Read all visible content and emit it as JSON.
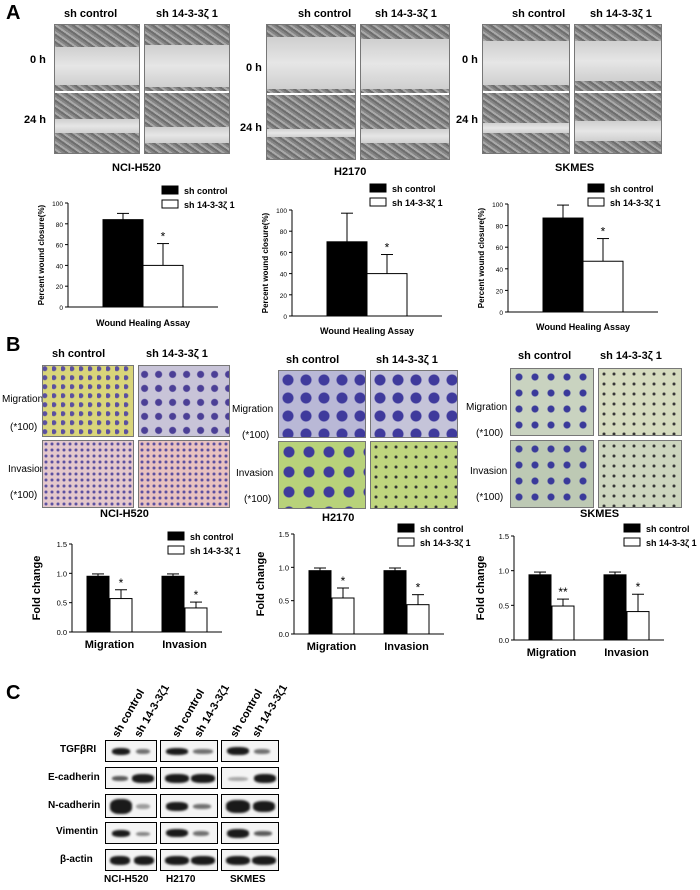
{
  "panels": {
    "a": "A",
    "b": "B",
    "c": "C"
  },
  "section_a": {
    "groups": [
      {
        "cell_line": "NCI-H520",
        "col_labels": [
          "sh control",
          "sh 14-3-3ζ 1"
        ],
        "row_labels": [
          "0 h",
          "24 h"
        ]
      },
      {
        "cell_line": "H2170",
        "col_labels": [
          "sh control",
          "sh 14-3-3ζ 1"
        ],
        "row_labels": [
          "0 h",
          "24 h"
        ]
      },
      {
        "cell_line": "SKMES",
        "col_labels": [
          "sh control",
          "sh 14-3-3ζ 1"
        ],
        "row_labels": [
          "0 h",
          "24 h"
        ]
      }
    ]
  },
  "section_b": {
    "groups": [
      {
        "cell_line": "NCI-H520",
        "col_labels": [
          "sh control",
          "sh 14-3-3ζ 1"
        ],
        "row_labels": [
          "Migration",
          "(*100)",
          "Invasion",
          "(*100)"
        ]
      },
      {
        "cell_line": "H2170",
        "col_labels": [
          "sh control",
          "sh 14-3-3ζ 1"
        ],
        "row_labels": [
          "Migration",
          "(*100)",
          "Invasion",
          "(*100)"
        ]
      },
      {
        "cell_line": "SKMES",
        "col_labels": [
          "sh control",
          "sh 14-3-3ζ 1"
        ],
        "row_labels": [
          "Migration",
          "(*100)",
          "Invasion",
          "(*100)"
        ]
      }
    ]
  },
  "section_c": {
    "col_labels": [
      "sh control",
      "sh 14-3-3ζ1",
      "sh control",
      "sh 14-3-3ζ1",
      "sh control",
      "sh 14-3-3ζ1"
    ],
    "proteins": [
      "TGFβRI",
      "E-cadherin",
      "N-cadherin",
      "Vimentin",
      "β-actin"
    ],
    "cell_lines": [
      "NCI-H520",
      "H2170",
      "SKMES"
    ]
  },
  "colors": {
    "control": "#000000",
    "knockdown": "#ffffff"
  },
  "chart_data": [
    {
      "type": "bar",
      "id": "wound-nci",
      "categories": [
        ""
      ],
      "series": [
        {
          "name": "sh control",
          "values": [
            84
          ],
          "errors": [
            6
          ]
        },
        {
          "name": "sh 14-3-3ζ 1",
          "values": [
            40
          ],
          "errors": [
            21
          ]
        }
      ],
      "xlabel": "Wound Healing Assay",
      "ylabel": "Percent wound closure(%)",
      "ylim": [
        0,
        100
      ],
      "yticks": [
        "0",
        "20",
        "40",
        "60",
        "80",
        "100"
      ],
      "annotations": [
        "*"
      ],
      "legend": "top-right"
    },
    {
      "type": "bar",
      "id": "wound-h2170",
      "categories": [
        ""
      ],
      "series": [
        {
          "name": "sh control",
          "values": [
            70
          ],
          "errors": [
            27
          ]
        },
        {
          "name": "sh 14-3-3ζ 1",
          "values": [
            40
          ],
          "errors": [
            18
          ]
        }
      ],
      "xlabel": "Wound Healing Assay",
      "ylabel": "Percent wound closure(%)",
      "ylim": [
        0,
        100
      ],
      "yticks": [
        "0",
        "20",
        "40",
        "60",
        "80",
        "100"
      ],
      "annotations": [
        "*"
      ],
      "legend": "top-right"
    },
    {
      "type": "bar",
      "id": "wound-skmes",
      "categories": [
        ""
      ],
      "series": [
        {
          "name": "sh control",
          "values": [
            87
          ],
          "errors": [
            12
          ]
        },
        {
          "name": "sh 14-3-3ζ 1",
          "values": [
            47
          ],
          "errors": [
            21
          ]
        }
      ],
      "xlabel": "Wound Healing Assay",
      "ylabel": "Percent wound closure(%)",
      "ylim": [
        0,
        100
      ],
      "yticks": [
        "0",
        "20",
        "40",
        "60",
        "80",
        "100"
      ],
      "annotations": [
        "*"
      ],
      "legend": "top-right"
    },
    {
      "type": "bar",
      "id": "fold-nci",
      "categories": [
        "Migration",
        "Invasion"
      ],
      "series": [
        {
          "name": "sh control",
          "values": [
            0.95,
            0.95
          ],
          "errors": [
            0.04,
            0.04
          ]
        },
        {
          "name": "sh 14-3-3ζ 1",
          "values": [
            0.57,
            0.41
          ],
          "errors": [
            0.15,
            0.1
          ]
        }
      ],
      "ylabel": "Fold change",
      "ylim": [
        0,
        1.5
      ],
      "yticks": [
        "0.0",
        "0.5",
        "1.0",
        "1.5"
      ],
      "annotations": [
        "*",
        "*"
      ],
      "legend": "top-right"
    },
    {
      "type": "bar",
      "id": "fold-h2170",
      "categories": [
        "Migration",
        "Invasion"
      ],
      "series": [
        {
          "name": "sh control",
          "values": [
            0.95,
            0.95
          ],
          "errors": [
            0.04,
            0.04
          ]
        },
        {
          "name": "sh 14-3-3ζ 1",
          "values": [
            0.54,
            0.44
          ],
          "errors": [
            0.15,
            0.15
          ]
        }
      ],
      "ylabel": "Fold change",
      "ylim": [
        0,
        1.5
      ],
      "yticks": [
        "0.0",
        "0.5",
        "1.0",
        "1.5"
      ],
      "annotations": [
        "*",
        "*"
      ],
      "legend": "top-right"
    },
    {
      "type": "bar",
      "id": "fold-skmes",
      "categories": [
        "Migration",
        "Invasion"
      ],
      "series": [
        {
          "name": "sh control",
          "values": [
            0.94,
            0.94
          ],
          "errors": [
            0.04,
            0.04
          ]
        },
        {
          "name": "sh 14-3-3ζ 1",
          "values": [
            0.49,
            0.41
          ],
          "errors": [
            0.1,
            0.25
          ]
        }
      ],
      "ylabel": "Fold change",
      "ylim": [
        0,
        1.5
      ],
      "yticks": [
        "0.0",
        "0.5",
        "1.0",
        "1.5"
      ],
      "annotations": [
        "**",
        "*"
      ],
      "legend": "top-right"
    }
  ]
}
